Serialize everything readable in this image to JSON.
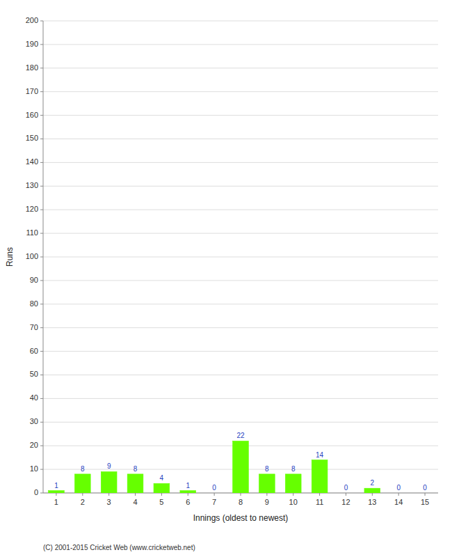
{
  "chart_data": {
    "type": "bar",
    "categories": [
      "1",
      "2",
      "3",
      "4",
      "5",
      "6",
      "7",
      "8",
      "9",
      "10",
      "11",
      "12",
      "13",
      "14",
      "15"
    ],
    "values": [
      1,
      8,
      9,
      8,
      4,
      1,
      0,
      22,
      8,
      8,
      14,
      0,
      2,
      0,
      0
    ],
    "color": "#66ff00",
    "x_label": "Innings (oldest to newest)",
    "y_label": "Runs",
    "ylim": [
      0,
      200
    ],
    "yticks": [
      0,
      10,
      20,
      30,
      40,
      50,
      60,
      70,
      80,
      90,
      100,
      110,
      120,
      130,
      140,
      150,
      160,
      170,
      180,
      190,
      200
    ],
    "grid": true,
    "data_labels": true,
    "annotations": [
      "(C) 2001-2015 Cricket Web (www.cricketweb.net)"
    ]
  }
}
